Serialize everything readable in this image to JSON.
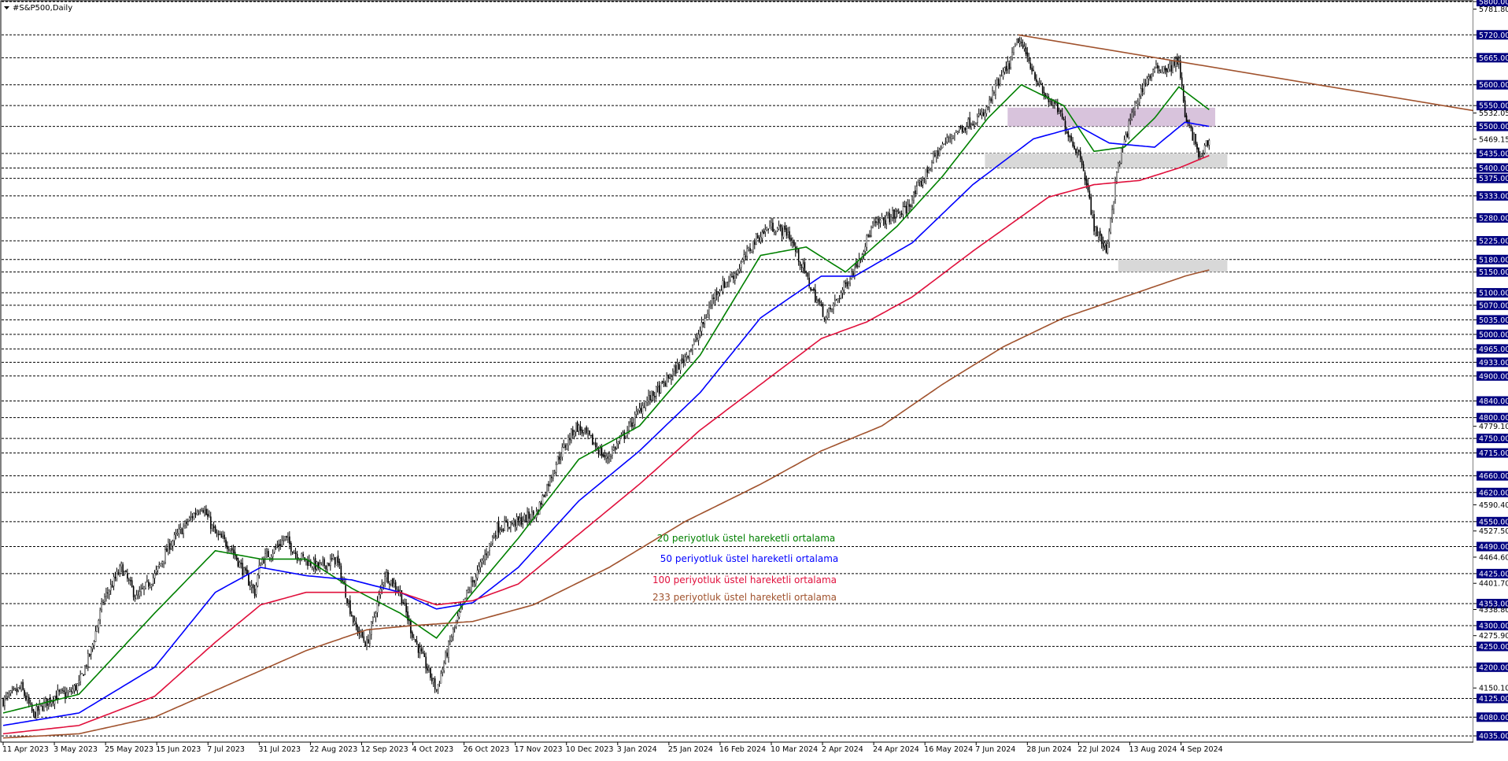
{
  "header": {
    "symbol_label": "#S&P500,Daily",
    "dropdown_icon": "triangle-down-icon"
  },
  "colors": {
    "ema20": "#008000",
    "ema50": "#0000ff",
    "ema100": "#e0103c",
    "ema233": "#a0522d",
    "trendline": "#a0522d",
    "zone_purple": "#d8c3dc",
    "zone_gray": "#d8d8d8",
    "grid": "#000000",
    "candle": "#000000"
  },
  "chart_data": {
    "type": "candlestick",
    "title": "",
    "ylim": [
      4020,
      5800
    ],
    "price_axis": {
      "boxed_levels": [
        "5800.00",
        "5720.00",
        "5665.00",
        "5600.00",
        "5550.00",
        "5500.00",
        "5435.00",
        "5400.00",
        "5375.00",
        "5333.00",
        "5280.00",
        "5225.00",
        "5180.00",
        "5150.00",
        "5100.00",
        "5070.00",
        "5035.00",
        "5000.00",
        "4965.00",
        "4933.00",
        "4900.00",
        "4840.00",
        "4800.00",
        "4750.00",
        "4715.00",
        "4660.00",
        "4620.00",
        "4550.00",
        "4490.00",
        "4425.00",
        "4353.00",
        "4300.00",
        "4250.00",
        "4200.00",
        "4125.00",
        "4080.00",
        "4035.00"
      ],
      "plain_levels": [
        "5781.80",
        "5532.05",
        "5469.15",
        "4779.10",
        "4590.40",
        "4527.50",
        "4464.60",
        "4401.70",
        "4338.80",
        "4275.90",
        "4150.10"
      ],
      "current_price": "5469.15"
    },
    "date_labels": [
      "11 Apr 2023",
      "3 May 2023",
      "25 May 2023",
      "15 Jun 2023",
      "7 Jul 2023",
      "31 Jul 2023",
      "22 Aug 2023",
      "12 Sep 2023",
      "4 Oct 2023",
      "26 Oct 2023",
      "17 Nov 2023",
      "10 Dec 2023",
      "3 Jan 2024",
      "25 Jan 2024",
      "16 Feb 2024",
      "10 Mar 2024",
      "2 Apr 2024",
      "24 Apr 2024",
      "16 May 2024",
      "7 Jun 2024",
      "28 Jun 2024",
      "22 Jul 2024",
      "13 Aug 2024",
      "4 Sep 2024"
    ],
    "price_path": [
      [
        0,
        4120
      ],
      [
        12,
        4150
      ],
      [
        20,
        4085
      ],
      [
        28,
        4115
      ],
      [
        36,
        4135
      ],
      [
        43,
        4135
      ],
      [
        50,
        4160
      ],
      [
        58,
        4240
      ],
      [
        66,
        4360
      ],
      [
        78,
        4440
      ],
      [
        88,
        4365
      ],
      [
        100,
        4420
      ],
      [
        110,
        4495
      ],
      [
        122,
        4550
      ],
      [
        131,
        4590
      ],
      [
        140,
        4520
      ],
      [
        150,
        4490
      ],
      [
        160,
        4420
      ],
      [
        166,
        4380
      ],
      [
        170,
        4455
      ],
      [
        178,
        4480
      ],
      [
        186,
        4510
      ],
      [
        194,
        4470
      ],
      [
        208,
        4440
      ],
      [
        220,
        4460
      ],
      [
        232,
        4300
      ],
      [
        240,
        4255
      ],
      [
        252,
        4425
      ],
      [
        262,
        4380
      ],
      [
        270,
        4280
      ],
      [
        286,
        4145
      ],
      [
        296,
        4275
      ],
      [
        306,
        4375
      ],
      [
        314,
        4435
      ],
      [
        326,
        4535
      ],
      [
        340,
        4550
      ],
      [
        352,
        4570
      ],
      [
        366,
        4700
      ],
      [
        378,
        4780
      ],
      [
        386,
        4755
      ],
      [
        398,
        4700
      ],
      [
        412,
        4770
      ],
      [
        422,
        4830
      ],
      [
        436,
        4880
      ],
      [
        448,
        4935
      ],
      [
        458,
        4990
      ],
      [
        470,
        5100
      ],
      [
        484,
        5150
      ],
      [
        496,
        5225
      ],
      [
        506,
        5260
      ],
      [
        518,
        5245
      ],
      [
        526,
        5175
      ],
      [
        534,
        5105
      ],
      [
        543,
        5040
      ],
      [
        553,
        5100
      ],
      [
        562,
        5160
      ],
      [
        574,
        5260
      ],
      [
        584,
        5280
      ],
      [
        596,
        5300
      ],
      [
        606,
        5365
      ],
      [
        616,
        5435
      ],
      [
        626,
        5480
      ],
      [
        638,
        5510
      ],
      [
        648,
        5530
      ],
      [
        656,
        5600
      ],
      [
        664,
        5650
      ],
      [
        670,
        5710
      ],
      [
        678,
        5650
      ],
      [
        686,
        5580
      ],
      [
        696,
        5540
      ],
      [
        706,
        5460
      ],
      [
        712,
        5420
      ],
      [
        720,
        5260
      ],
      [
        728,
        5200
      ],
      [
        736,
        5410
      ],
      [
        746,
        5540
      ],
      [
        754,
        5610
      ],
      [
        762,
        5640
      ],
      [
        770,
        5640
      ],
      [
        776,
        5660
      ],
      [
        780,
        5520
      ],
      [
        786,
        5470
      ],
      [
        790,
        5420
      ],
      [
        794,
        5455
      ],
      [
        796,
        5469
      ]
    ],
    "series": [
      {
        "name": "20 periyotluk üstel hareketli ortalama",
        "path": [
          [
            0,
            4090
          ],
          [
            50,
            4135
          ],
          [
            100,
            4330
          ],
          [
            140,
            4480
          ],
          [
            170,
            4460
          ],
          [
            200,
            4460
          ],
          [
            230,
            4390
          ],
          [
            262,
            4330
          ],
          [
            286,
            4270
          ],
          [
            310,
            4380
          ],
          [
            340,
            4510
          ],
          [
            380,
            4700
          ],
          [
            420,
            4780
          ],
          [
            460,
            4950
          ],
          [
            500,
            5190
          ],
          [
            530,
            5210
          ],
          [
            556,
            5150
          ],
          [
            590,
            5260
          ],
          [
            620,
            5380
          ],
          [
            650,
            5520
          ],
          [
            672,
            5600
          ],
          [
            700,
            5550
          ],
          [
            720,
            5440
          ],
          [
            740,
            5450
          ],
          [
            760,
            5520
          ],
          [
            776,
            5595
          ],
          [
            796,
            5540
          ]
        ]
      },
      {
        "name": "50 periyotluk üstel hareketli ortalama",
        "path": [
          [
            0,
            4060
          ],
          [
            50,
            4090
          ],
          [
            100,
            4200
          ],
          [
            140,
            4380
          ],
          [
            170,
            4440
          ],
          [
            200,
            4420
          ],
          [
            230,
            4410
          ],
          [
            262,
            4380
          ],
          [
            286,
            4340
          ],
          [
            310,
            4355
          ],
          [
            340,
            4440
          ],
          [
            380,
            4600
          ],
          [
            420,
            4720
          ],
          [
            460,
            4860
          ],
          [
            500,
            5040
          ],
          [
            540,
            5140
          ],
          [
            562,
            5140
          ],
          [
            600,
            5220
          ],
          [
            640,
            5360
          ],
          [
            680,
            5470
          ],
          [
            710,
            5500
          ],
          [
            730,
            5460
          ],
          [
            760,
            5450
          ],
          [
            780,
            5510
          ],
          [
            796,
            5500
          ]
        ]
      },
      {
        "name": "100 periyotluk üstel hareketli ortalama",
        "path": [
          [
            0,
            4040
          ],
          [
            50,
            4060
          ],
          [
            100,
            4130
          ],
          [
            140,
            4260
          ],
          [
            170,
            4350
          ],
          [
            200,
            4380
          ],
          [
            230,
            4380
          ],
          [
            262,
            4380
          ],
          [
            286,
            4350
          ],
          [
            310,
            4360
          ],
          [
            340,
            4400
          ],
          [
            380,
            4520
          ],
          [
            420,
            4640
          ],
          [
            460,
            4770
          ],
          [
            500,
            4880
          ],
          [
            540,
            4990
          ],
          [
            570,
            5030
          ],
          [
            600,
            5090
          ],
          [
            640,
            5200
          ],
          [
            690,
            5330
          ],
          [
            720,
            5360
          ],
          [
            750,
            5370
          ],
          [
            776,
            5400
          ],
          [
            796,
            5430
          ]
        ]
      },
      {
        "name": "233 periyotluk üstel hareketli ortalama",
        "path": [
          [
            0,
            4030
          ],
          [
            50,
            4040
          ],
          [
            100,
            4080
          ],
          [
            150,
            4160
          ],
          [
            200,
            4240
          ],
          [
            240,
            4290
          ],
          [
            270,
            4300
          ],
          [
            310,
            4310
          ],
          [
            350,
            4350
          ],
          [
            400,
            4440
          ],
          [
            450,
            4550
          ],
          [
            500,
            4640
          ],
          [
            540,
            4720
          ],
          [
            580,
            4780
          ],
          [
            620,
            4880
          ],
          [
            660,
            4970
          ],
          [
            700,
            5040
          ],
          [
            740,
            5090
          ],
          [
            780,
            5140
          ],
          [
            796,
            5155
          ]
        ]
      }
    ],
    "trendline": [
      [
        670,
        5720
      ],
      [
        1000,
        5520
      ]
    ],
    "zones": [
      {
        "color": "purple",
        "x": [
          663,
          800
        ],
        "y": [
          5500,
          5545
        ]
      },
      {
        "color": "gray",
        "x": [
          648,
          808
        ],
        "y": [
          5400,
          5435
        ]
      },
      {
        "color": "gray",
        "x": [
          736,
          808
        ],
        "y": [
          5150,
          5180
        ]
      }
    ],
    "legend": [
      {
        "label": "20 periyotluk üstel hareketli ortalama",
        "color": "#008000"
      },
      {
        "label": "50 periyotluk üstel hareketli ortalama",
        "color": "#0000ff"
      },
      {
        "label": "100 periyotluk üstel hareketli ortalama",
        "color": "#e0103c"
      },
      {
        "label": "233 periyotluk üstel hareketli ortalama",
        "color": "#a0522d"
      }
    ]
  }
}
